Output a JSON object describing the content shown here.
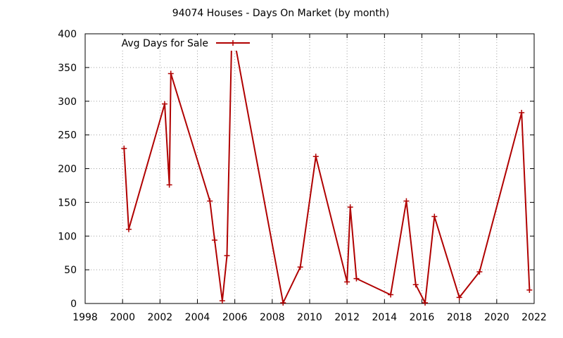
{
  "chart_data": {
    "type": "line",
    "title": "94074 Houses - Days On Market (by month)",
    "xlabel": "",
    "ylabel": "",
    "xlim": [
      1998,
      2022
    ],
    "ylim": [
      0,
      400
    ],
    "x_ticks": [
      1998,
      2000,
      2002,
      2004,
      2006,
      2008,
      2010,
      2012,
      2014,
      2016,
      2018,
      2020,
      2022
    ],
    "y_ticks": [
      0,
      50,
      100,
      150,
      200,
      250,
      300,
      350,
      400
    ],
    "grid": true,
    "legend_position": "top-left",
    "series": [
      {
        "name": "Avg Days for Sale",
        "color": "#b00000",
        "marker": "plus",
        "x": [
          2000.08,
          2000.33,
          2002.25,
          2002.5,
          2002.58,
          2004.67,
          2004.92,
          2005.33,
          2005.58,
          2005.83,
          2006.0,
          2008.58,
          2009.5,
          2010.33,
          2012.0,
          2012.17,
          2012.5,
          2014.33,
          2015.17,
          2015.67,
          2016.17,
          2016.67,
          2018.0,
          2019.08,
          2021.33,
          2021.75
        ],
        "y": [
          230,
          110,
          296,
          176,
          341,
          152,
          94,
          4,
          71,
          387,
          387,
          1,
          54,
          218,
          32,
          143,
          37,
          13,
          152,
          28,
          1,
          129,
          9,
          47,
          283,
          20
        ]
      }
    ]
  }
}
